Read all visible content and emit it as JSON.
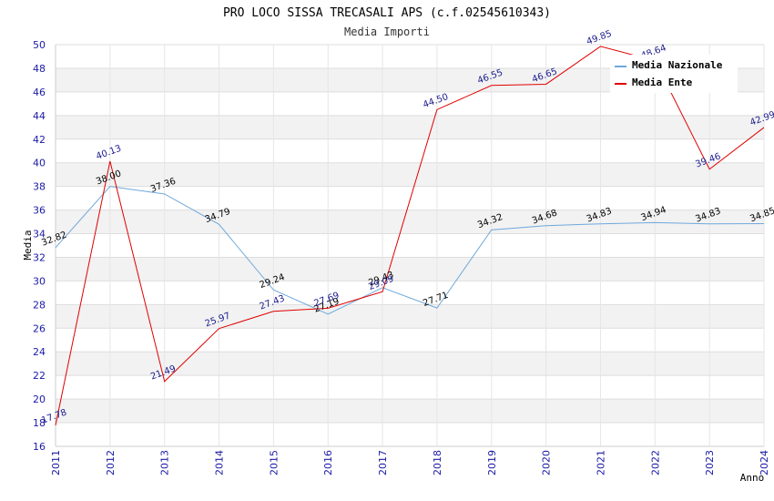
{
  "chart_data": {
    "type": "line",
    "title": "PRO LOCO SISSA TRECASALI APS (c.f.02545610343)",
    "subtitle": "Media Importi",
    "xlabel": "Anno",
    "ylabel": "Media",
    "ylim": [
      16,
      50
    ],
    "ytick_step": 2,
    "grid": true,
    "legend_position": "top-right",
    "x": [
      "2011",
      "2012",
      "2013",
      "2014",
      "2015",
      "2016",
      "2017",
      "2018",
      "2019",
      "2020",
      "2021",
      "2022",
      "2023",
      "2024"
    ],
    "series": [
      {
        "name": "Media Nazionale",
        "color": "#6fa8dc",
        "label_color": "#000000",
        "values": [
          32.82,
          38.0,
          37.36,
          34.79,
          29.24,
          27.19,
          29.43,
          27.71,
          34.32,
          34.68,
          34.83,
          34.94,
          34.83,
          34.85
        ],
        "labels": [
          "32.82",
          "38.00",
          "37.36",
          "34.79",
          "29.24",
          "27.19",
          "29.43",
          "27.71",
          "34.32",
          "34.68",
          "34.83",
          "34.94",
          "34.83",
          "34.85"
        ]
      },
      {
        "name": "Media Ente",
        "color": "#e00000",
        "label_color": "#1a1a8c",
        "values": [
          17.78,
          40.13,
          21.49,
          25.97,
          27.43,
          27.69,
          29.09,
          44.5,
          46.55,
          46.65,
          49.85,
          48.64,
          39.46,
          42.99
        ],
        "labels": [
          "17.78",
          "40.13",
          "21.49",
          "25.97",
          "27.43",
          "27.69",
          "29.09",
          "44.50",
          "46.55",
          "46.65",
          "49.85",
          "48.64",
          "39.46",
          "42.99"
        ]
      }
    ]
  }
}
